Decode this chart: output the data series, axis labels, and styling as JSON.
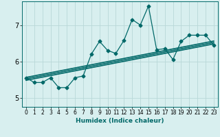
{
  "xlabel": "Humidex (Indice chaleur)",
  "background_color": "#d8efef",
  "line_color": "#006868",
  "grid_color": "#b8d8d8",
  "xlim": [
    -0.5,
    23.5
  ],
  "ylim": [
    4.75,
    7.65
  ],
  "xticks": [
    0,
    1,
    2,
    3,
    4,
    5,
    6,
    7,
    8,
    9,
    10,
    11,
    12,
    13,
    14,
    15,
    16,
    17,
    18,
    19,
    20,
    21,
    22,
    23
  ],
  "yticks": [
    5,
    6,
    7
  ],
  "data_x": [
    0,
    1,
    2,
    3,
    4,
    5,
    6,
    7,
    8,
    9,
    10,
    11,
    12,
    13,
    14,
    15,
    16,
    17,
    18,
    19,
    20,
    21,
    22,
    23
  ],
  "data_y": [
    5.55,
    5.42,
    5.42,
    5.55,
    5.28,
    5.28,
    5.55,
    5.6,
    6.2,
    6.55,
    6.3,
    6.22,
    6.58,
    7.15,
    7.0,
    7.52,
    6.32,
    6.35,
    6.05,
    6.55,
    6.72,
    6.72,
    6.72,
    6.45
  ],
  "trend1_x": [
    0,
    23
  ],
  "trend1_y": [
    5.48,
    6.48
  ],
  "trend2_x": [
    0,
    23
  ],
  "trend2_y": [
    5.52,
    6.52
  ],
  "trend3_x": [
    0,
    23
  ],
  "trend3_y": [
    5.56,
    6.56
  ]
}
